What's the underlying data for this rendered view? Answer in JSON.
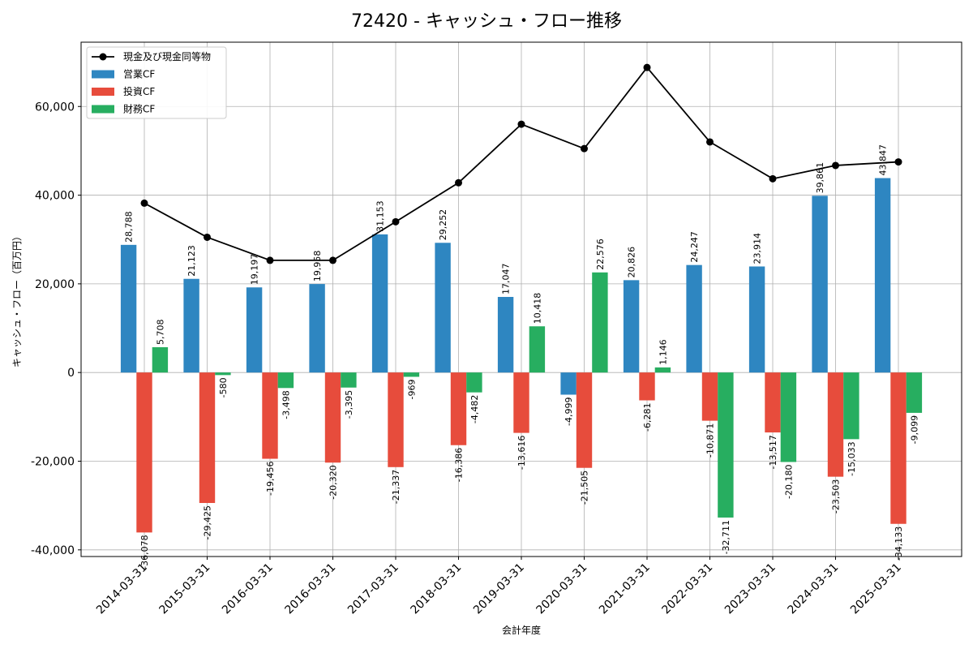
{
  "chart_data": {
    "type": "bar",
    "title": "72420 - キャッシュ・フロー推移",
    "xlabel": "会計年度",
    "ylabel": "キャッシュ・フロー（百万円）",
    "ylim": [
      -41500,
      74500
    ],
    "yticks": [
      -40000,
      -20000,
      0,
      20000,
      40000,
      60000
    ],
    "ytick_labels": [
      "-40,000",
      "-20,000",
      "0",
      "20,000",
      "40,000",
      "60,000"
    ],
    "grid": true,
    "legend_position": "top-left",
    "categories": [
      "2014-03-31",
      "2015-03-31",
      "2016-03-31",
      "2016-03-31",
      "2017-03-31",
      "2018-03-31",
      "2019-03-31",
      "2020-03-31",
      "2021-03-31",
      "2022-03-31",
      "2023-03-31",
      "2024-03-31",
      "2025-03-31"
    ],
    "series": [
      {
        "name": "営業CF",
        "kind": "bar",
        "color": "#2e86c1",
        "values": [
          28788,
          21123,
          19197,
          19958,
          31153,
          29252,
          17047,
          -4999,
          20826,
          24247,
          23914,
          39861,
          43847
        ],
        "labels": [
          "28,788",
          "21,123",
          "19,197",
          "19,958",
          "31,153",
          "29,252",
          "17,047",
          "-4,999",
          "20,826",
          "24,247",
          "23,914",
          "39,861",
          "43,847"
        ]
      },
      {
        "name": "投資CF",
        "kind": "bar",
        "color": "#e74c3c",
        "values": [
          -36078,
          -29425,
          -19456,
          -20320,
          -21337,
          -16386,
          -13616,
          -21505,
          -6281,
          -10871,
          -13517,
          -23503,
          -34133
        ],
        "labels": [
          "-36,078",
          "-29,425",
          "-19,456",
          "-20,320",
          "-21,337",
          "-16,386",
          "-13,616",
          "-21,505",
          "-6,281",
          "-10,871",
          "-13,517",
          "-23,503",
          "-34,133"
        ]
      },
      {
        "name": "財務CF",
        "kind": "bar",
        "color": "#27ae60",
        "values": [
          5708,
          -580,
          -3498,
          -3395,
          -969,
          -4482,
          10418,
          22576,
          1146,
          -32711,
          -20180,
          -15033,
          -9099
        ],
        "labels": [
          "5,708",
          "-580",
          "-3,498",
          "-3,395",
          "-969",
          "-4,482",
          "10,418",
          "22,576",
          "1,146",
          "-32,711",
          "-20,180",
          "-15,033",
          "-9,099"
        ]
      },
      {
        "name": "現金及び現金同等物",
        "kind": "line",
        "color": "#000000",
        "values": [
          38200,
          30500,
          25300,
          25300,
          34000,
          42800,
          56000,
          50500,
          68800,
          52000,
          43700,
          46700,
          47500
        ]
      }
    ]
  }
}
